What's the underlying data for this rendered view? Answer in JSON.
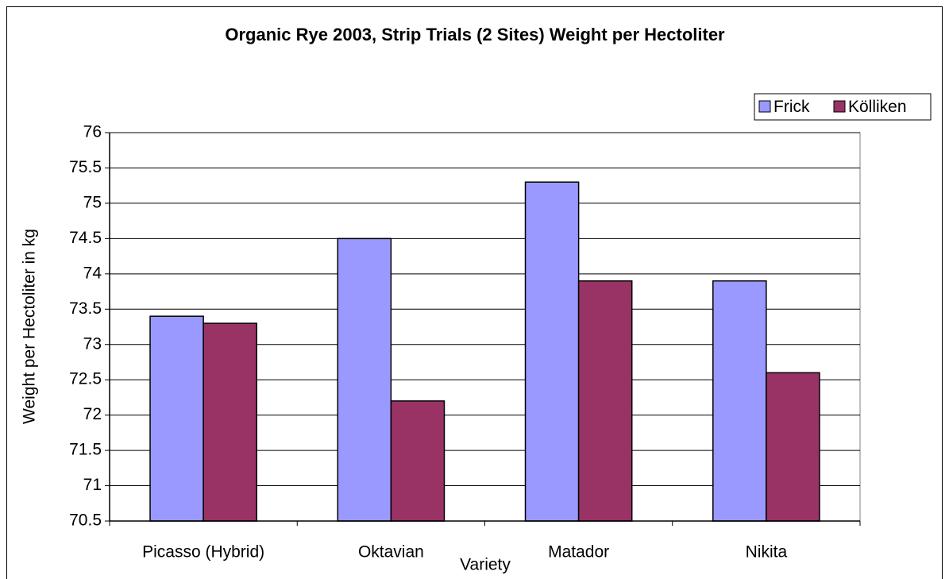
{
  "chart_data": {
    "type": "bar",
    "title": "Organic Rye 2003, Strip Trials (2 Sites) Weight per Hectoliter",
    "x_label": "Variety",
    "y_label": "Weight per Hectoliter in kg",
    "categories": [
      "Picasso (Hybrid)",
      "Oktavian",
      "Matador",
      "Nikita"
    ],
    "series": [
      {
        "name": "Frick",
        "color": "#9999ff",
        "values": [
          73.4,
          74.5,
          75.3,
          73.9
        ]
      },
      {
        "name": "Kölliken",
        "color": "#993366",
        "values": [
          73.3,
          72.2,
          73.9,
          72.6
        ]
      }
    ],
    "ylim": [
      70.5,
      76
    ],
    "yticks": [
      70.5,
      71,
      71.5,
      72,
      72.5,
      73,
      73.5,
      74,
      74.5,
      75,
      75.5,
      76
    ],
    "grid": true,
    "legend": "top-right"
  }
}
